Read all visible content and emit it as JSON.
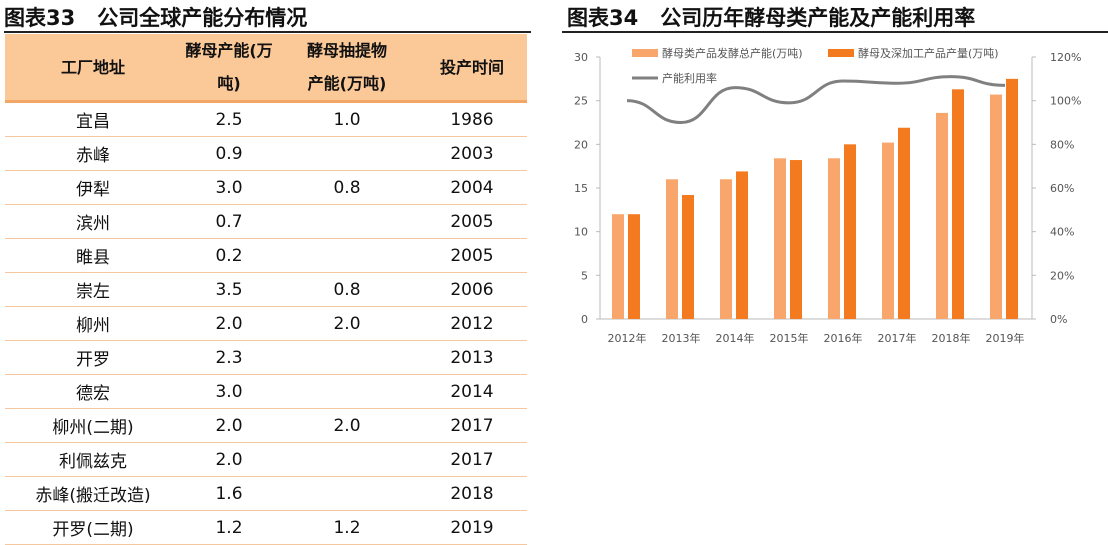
{
  "left": {
    "title_num": "图表33",
    "title": "公司全球产能分布情况",
    "headers": [
      [
        "工厂地址"
      ],
      [
        "酵母产能(万",
        "吨)"
      ],
      [
        "酵母抽提物",
        "产能(万吨)"
      ],
      [
        "投产时间"
      ]
    ],
    "rows": [
      [
        "宜昌",
        "2.5",
        "1.0",
        "1986"
      ],
      [
        "赤峰",
        "0.9",
        "",
        "2003"
      ],
      [
        "伊犁",
        "3.0",
        "0.8",
        "2004"
      ],
      [
        "滨州",
        "0.7",
        "",
        "2005"
      ],
      [
        "睢县",
        "0.2",
        "",
        "2005"
      ],
      [
        "崇左",
        "3.5",
        "0.8",
        "2006"
      ],
      [
        "柳州",
        "2.0",
        "2.0",
        "2012"
      ],
      [
        "开罗",
        "2.3",
        "",
        "2013"
      ],
      [
        "德宏",
        "3.0",
        "",
        "2014"
      ],
      [
        "柳州(二期)",
        "2.0",
        "2.0",
        "2017"
      ],
      [
        "利佩兹克",
        "2.0",
        "",
        "2017"
      ],
      [
        "赤峰(搬迁改造)",
        "1.6",
        "",
        "2018"
      ],
      [
        "开罗(二期)",
        "1.2",
        "1.2",
        "2019"
      ]
    ]
  },
  "right": {
    "title_num": "图表34",
    "title": "公司历年酵母类产能及产能利用率"
  },
  "chart_data": {
    "type": "bar+line",
    "categories": [
      "2012年",
      "2013年",
      "2014年",
      "2015年",
      "2016年",
      "2017年",
      "2018年",
      "2019年"
    ],
    "series": [
      {
        "name": "酵母类产品发酵总产能(万吨)",
        "type": "bar",
        "axis": "left",
        "color": "#f9a66c",
        "values": [
          12,
          16,
          16,
          18.4,
          18.4,
          20.2,
          23.6,
          25.7
        ]
      },
      {
        "name": "酵母及深加工产品产量(万吨)",
        "type": "bar",
        "axis": "left",
        "color": "#f47a1f",
        "values": [
          12,
          14.2,
          16.9,
          18.2,
          20,
          21.9,
          26.3,
          27.5
        ]
      },
      {
        "name": "产能利用率",
        "type": "line",
        "axis": "right",
        "color": "#808080",
        "values": [
          100,
          90,
          106,
          99,
          109,
          108,
          111,
          107
        ]
      }
    ],
    "ylim": [
      0,
      30
    ],
    "yticks": [
      "0",
      "5",
      "10",
      "15",
      "20",
      "25",
      "30"
    ],
    "y2lim": [
      0,
      120
    ],
    "y2ticks": [
      "0%",
      "20%",
      "40%",
      "60%",
      "80%",
      "100%",
      "120%"
    ],
    "legend": "top",
    "grid": false
  }
}
